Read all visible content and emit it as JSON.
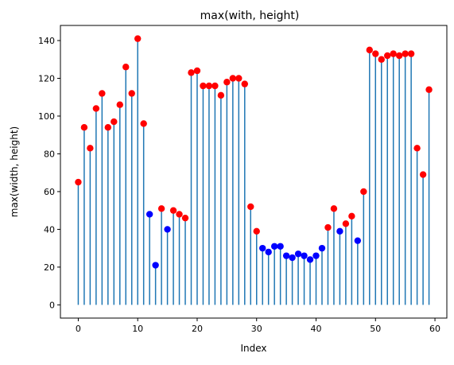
{
  "chart_data": {
    "type": "stem",
    "title": "max(with, height)",
    "xlabel": "Index",
    "ylabel": "max(width, height)",
    "xlim": [
      -3,
      62
    ],
    "ylim": [
      -7,
      148
    ],
    "xticks": [
      0,
      10,
      20,
      30,
      40,
      50,
      60
    ],
    "yticks": [
      0,
      20,
      40,
      60,
      80,
      100,
      120,
      140
    ],
    "grid": false,
    "stem_color": "#1f77b4",
    "marker_colors": {
      "red": "#ff0000",
      "blue": "#0000ff"
    },
    "x": [
      0,
      1,
      2,
      3,
      4,
      5,
      6,
      7,
      8,
      9,
      10,
      11,
      12,
      13,
      14,
      15,
      16,
      17,
      18,
      19,
      20,
      21,
      22,
      23,
      24,
      25,
      26,
      27,
      28,
      29,
      30,
      31,
      32,
      33,
      34,
      35,
      36,
      37,
      38,
      39,
      40,
      41,
      42,
      43,
      44,
      45,
      46,
      47,
      48,
      49,
      50,
      51,
      52,
      53,
      54,
      55,
      56,
      57,
      58,
      59
    ],
    "values": [
      65,
      94,
      83,
      104,
      112,
      94,
      97,
      106,
      126,
      112,
      141,
      96,
      48,
      21,
      51,
      40,
      50,
      48,
      46,
      123,
      124,
      116,
      116,
      116,
      111,
      118,
      120,
      120,
      117,
      52,
      39,
      30,
      28,
      31,
      31,
      26,
      25,
      27,
      26,
      24,
      26,
      30,
      41,
      51,
      39,
      43,
      47,
      34,
      60,
      135,
      133,
      130,
      132,
      133,
      132,
      133,
      133,
      83,
      69,
      114
    ],
    "marker_color_per_point": [
      "red",
      "red",
      "red",
      "red",
      "red",
      "red",
      "red",
      "red",
      "red",
      "red",
      "red",
      "red",
      "blue",
      "blue",
      "red",
      "blue",
      "red",
      "red",
      "red",
      "red",
      "red",
      "red",
      "red",
      "red",
      "red",
      "red",
      "red",
      "red",
      "red",
      "red",
      "red",
      "blue",
      "blue",
      "blue",
      "blue",
      "blue",
      "blue",
      "blue",
      "blue",
      "blue",
      "blue",
      "blue",
      "red",
      "red",
      "blue",
      "red",
      "red",
      "blue",
      "red",
      "red",
      "red",
      "red",
      "red",
      "red",
      "red",
      "red",
      "red",
      "red",
      "red",
      "red"
    ]
  }
}
